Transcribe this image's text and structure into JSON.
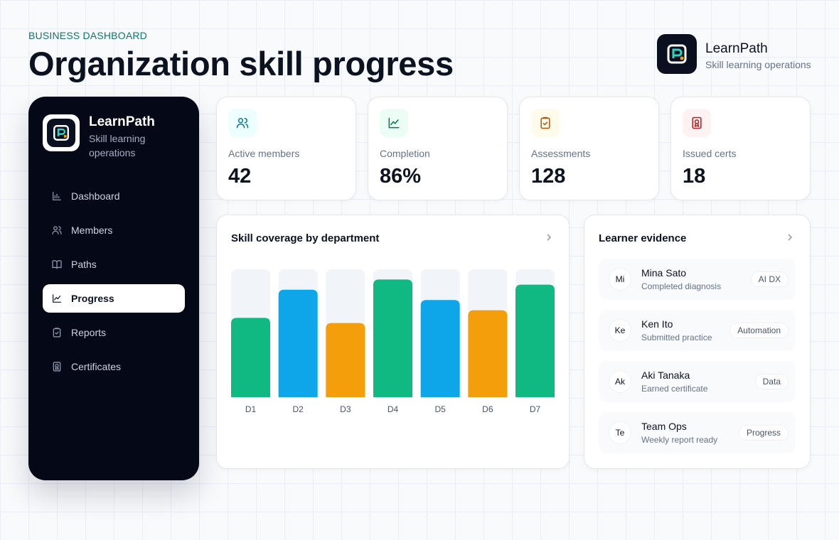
{
  "header": {
    "eyebrow": "BUSINESS DASHBOARD",
    "title": "Organization skill progress"
  },
  "brand": {
    "name": "LearnPath",
    "subtitle": "Skill learning operations"
  },
  "sidebar": {
    "brand": {
      "name": "LearnPath",
      "subtitle": "Skill learning operations"
    },
    "nav": [
      {
        "label": "Dashboard",
        "active": false
      },
      {
        "label": "Members",
        "active": false
      },
      {
        "label": "Paths",
        "active": false
      },
      {
        "label": "Progress",
        "active": true
      },
      {
        "label": "Reports",
        "active": false
      },
      {
        "label": "Certificates",
        "active": false
      }
    ]
  },
  "stats": [
    {
      "label": "Active members",
      "value": "42"
    },
    {
      "label": "Completion",
      "value": "86%"
    },
    {
      "label": "Assessments",
      "value": "128"
    },
    {
      "label": "Issued certs",
      "value": "18"
    }
  ],
  "chart_data": {
    "type": "bar",
    "title": "Skill coverage by department",
    "categories": [
      "D1",
      "D2",
      "D3",
      "D4",
      "D5",
      "D6",
      "D7"
    ],
    "values": [
      62,
      84,
      58,
      92,
      76,
      68,
      88
    ],
    "colors": [
      "#10b981",
      "#0ea5e9",
      "#f59e0b",
      "#10b981",
      "#0ea5e9",
      "#f59e0b",
      "#10b981"
    ],
    "ylim": [
      0,
      100
    ]
  },
  "evidence": {
    "title": "Learner evidence",
    "items": [
      {
        "initials": "Mi",
        "name": "Mina Sato",
        "detail": "Completed diagnosis",
        "tag": "AI DX"
      },
      {
        "initials": "Ke",
        "name": "Ken Ito",
        "detail": "Submitted practice",
        "tag": "Automation"
      },
      {
        "initials": "Ak",
        "name": "Aki Tanaka",
        "detail": "Earned certificate",
        "tag": "Data"
      },
      {
        "initials": "Te",
        "name": "Team Ops",
        "detail": "Weekly report ready",
        "tag": "Progress"
      }
    ]
  }
}
